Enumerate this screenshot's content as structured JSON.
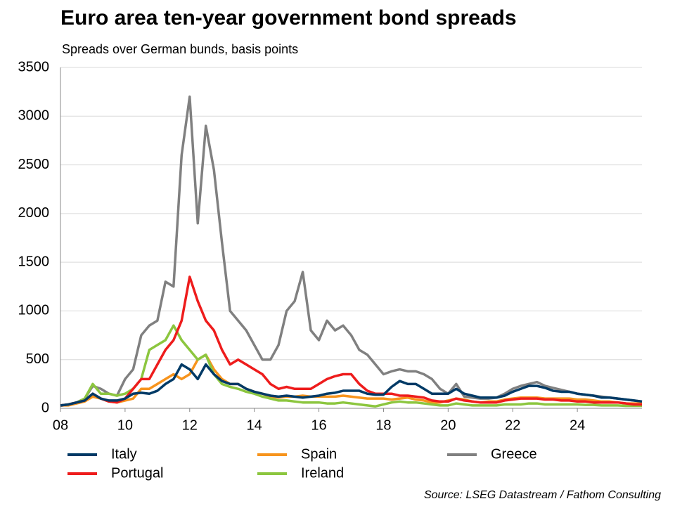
{
  "chart_data": {
    "type": "line",
    "title": "Euro area  ten-year government bond spreads",
    "subtitle": "Spreads over German bunds, basis points",
    "source": "Source: LSEG Datastream / Fathom Consulting",
    "x": [
      8,
      8.25,
      8.5,
      8.75,
      9,
      9.25,
      9.5,
      9.75,
      10,
      10.25,
      10.5,
      10.75,
      11,
      11.25,
      11.5,
      11.75,
      12,
      12.25,
      12.5,
      12.75,
      13,
      13.25,
      13.5,
      13.75,
      14,
      14.25,
      14.5,
      14.75,
      15,
      15.25,
      15.5,
      15.75,
      16,
      16.25,
      16.5,
      16.75,
      17,
      17.25,
      17.5,
      17.75,
      18,
      18.25,
      18.5,
      18.75,
      19,
      19.25,
      19.5,
      19.75,
      20,
      20.25,
      20.5,
      20.75,
      21,
      21.25,
      21.5,
      21.75,
      22,
      22.25,
      22.5,
      22.75,
      23,
      23.25,
      23.5,
      23.75,
      24,
      24.25,
      24.5,
      24.75,
      25,
      25.25,
      25.5,
      25.75,
      26
    ],
    "series": [
      {
        "name": "Greece",
        "color": "#808080",
        "values": [
          25,
          40,
          60,
          100,
          230,
          200,
          150,
          130,
          300,
          400,
          750,
          850,
          900,
          1300,
          1250,
          2600,
          3200,
          1900,
          2900,
          2450,
          1700,
          1000,
          900,
          800,
          650,
          500,
          500,
          650,
          1000,
          1100,
          1400,
          800,
          700,
          900,
          800,
          850,
          750,
          600,
          550,
          450,
          350,
          380,
          400,
          380,
          380,
          350,
          300,
          200,
          150,
          250,
          120,
          110,
          100,
          100,
          110,
          150,
          200,
          230,
          250,
          270,
          230,
          210,
          190,
          170,
          150,
          140,
          130,
          120,
          110,
          100,
          90,
          80,
          70
        ]
      },
      {
        "name": "Spain",
        "color": "#f7941d",
        "values": [
          30,
          30,
          50,
          70,
          120,
          100,
          70,
          60,
          80,
          100,
          200,
          200,
          250,
          300,
          350,
          300,
          350,
          500,
          550,
          400,
          300,
          250,
          250,
          200,
          170,
          150,
          120,
          110,
          120,
          120,
          130,
          120,
          120,
          120,
          120,
          130,
          120,
          110,
          100,
          100,
          100,
          90,
          100,
          110,
          90,
          80,
          60,
          60,
          80,
          100,
          90,
          70,
          60,
          70,
          70,
          90,
          100,
          110,
          110,
          110,
          100,
          100,
          100,
          100,
          90,
          90,
          80,
          70,
          70,
          60,
          50,
          50,
          50
        ]
      },
      {
        "name": "Ireland",
        "color": "#8cc63f",
        "values": [
          30,
          40,
          60,
          100,
          250,
          150,
          150,
          130,
          150,
          200,
          300,
          600,
          650,
          700,
          850,
          700,
          600,
          500,
          550,
          350,
          250,
          220,
          200,
          170,
          150,
          120,
          100,
          80,
          80,
          70,
          60,
          60,
          60,
          50,
          50,
          60,
          50,
          40,
          30,
          20,
          40,
          60,
          70,
          60,
          60,
          50,
          40,
          30,
          30,
          50,
          40,
          30,
          30,
          30,
          30,
          40,
          40,
          40,
          50,
          50,
          40,
          40,
          40,
          40,
          40,
          35,
          35,
          30,
          30,
          30,
          25,
          25,
          25
        ]
      },
      {
        "name": "Portugal",
        "color": "#ee1c1c",
        "values": [
          30,
          40,
          60,
          80,
          150,
          100,
          70,
          60,
          100,
          200,
          300,
          300,
          450,
          600,
          700,
          900,
          1350,
          1100,
          900,
          800,
          600,
          450,
          500,
          450,
          400,
          350,
          250,
          200,
          220,
          200,
          200,
          200,
          250,
          300,
          330,
          350,
          350,
          250,
          180,
          150,
          150,
          150,
          130,
          130,
          120,
          110,
          80,
          70,
          70,
          100,
          80,
          70,
          60,
          60,
          60,
          80,
          90,
          100,
          100,
          100,
          90,
          90,
          80,
          80,
          70,
          70,
          60,
          60,
          60,
          60,
          50,
          40,
          40
        ]
      },
      {
        "name": "Italy",
        "color": "#003a66",
        "values": [
          30,
          40,
          60,
          80,
          150,
          100,
          80,
          80,
          100,
          150,
          160,
          150,
          180,
          250,
          300,
          450,
          400,
          300,
          450,
          350,
          280,
          250,
          250,
          200,
          170,
          150,
          130,
          120,
          130,
          120,
          110,
          120,
          130,
          150,
          160,
          180,
          180,
          180,
          150,
          140,
          140,
          220,
          280,
          250,
          250,
          200,
          150,
          150,
          150,
          200,
          150,
          130,
          110,
          110,
          110,
          130,
          170,
          200,
          230,
          230,
          210,
          180,
          170,
          170,
          150,
          140,
          130,
          110,
          110,
          100,
          90,
          80,
          70
        ]
      }
    ],
    "legend_order": [
      "Italy",
      "Spain",
      "Greece",
      "Portugal",
      "Ireland"
    ],
    "xlim": [
      8,
      26
    ],
    "xticks": [
      {
        "value": 8,
        "label": "08"
      },
      10,
      12,
      14,
      16,
      18,
      20,
      22,
      24
    ],
    "ylim": [
      0,
      3500
    ],
    "yticks": [
      0,
      500,
      1000,
      1500,
      2000,
      2500,
      3000,
      3500
    ],
    "grid": true
  }
}
